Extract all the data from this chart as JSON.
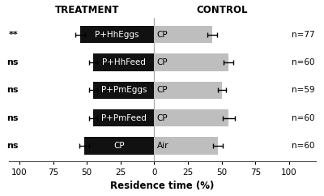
{
  "rows": [
    {
      "sig": "**",
      "treatment_label": "P+HhEggs",
      "control_label": "CP",
      "treatment_val": 55,
      "control_val": 43,
      "treatment_err": 3.5,
      "control_err": 3.5,
      "n": "n=77"
    },
    {
      "sig": "ns",
      "treatment_label": "P+HhFeed",
      "control_label": "CP",
      "treatment_val": 45,
      "control_val": 55,
      "treatment_err": 3.0,
      "control_err": 3.5,
      "n": "n=60"
    },
    {
      "sig": "ns",
      "treatment_label": "P+PmEggs",
      "control_label": "CP",
      "treatment_val": 45,
      "control_val": 50,
      "treatment_err": 3.0,
      "control_err": 3.0,
      "n": "n=59"
    },
    {
      "sig": "ns",
      "treatment_label": "P+PmFeed",
      "control_label": "CP",
      "treatment_val": 45,
      "control_val": 55,
      "treatment_err": 3.0,
      "control_err": 4.5,
      "n": "n=60"
    },
    {
      "sig": "ns",
      "treatment_label": "CP",
      "control_label": "Air",
      "treatment_val": 52,
      "control_val": 47,
      "treatment_err": 3.5,
      "control_err": 3.5,
      "n": "n=60"
    }
  ],
  "xlim": 100,
  "xlabel": "Residence time (%)",
  "treatment_header": "TREATMENT",
  "control_header": "CONTROL",
  "bar_height": 0.62,
  "black_color": "#111111",
  "gray_color": "#bebebe",
  "bg_color": "#ffffff",
  "text_white": "#ffffff",
  "text_black": "#000000",
  "sig_fontsize": 8,
  "label_fontsize": 7.5,
  "tick_fontsize": 7.5,
  "header_fontsize": 8.5,
  "n_fontsize": 7.5,
  "centerline_color": "#aaaaaa",
  "centerline_style": "-"
}
